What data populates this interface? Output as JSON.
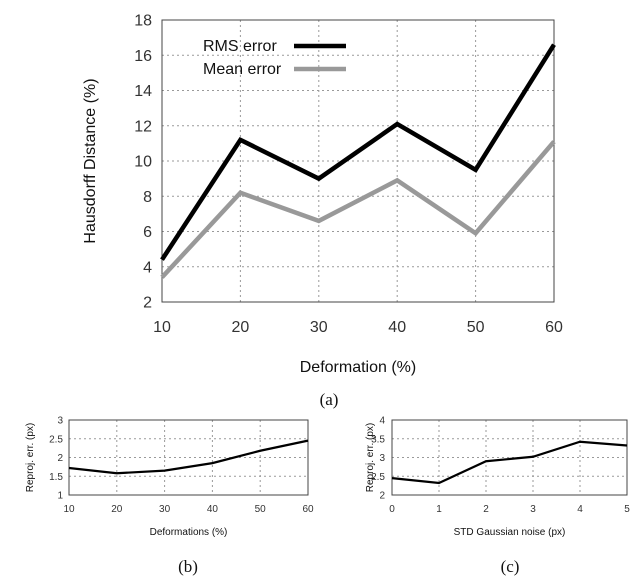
{
  "chart_data": [
    {
      "type": "line",
      "x": [
        10,
        20,
        30,
        40,
        50,
        60
      ],
      "series": [
        {
          "name": "RMS error",
          "values": [
            4.4,
            11.2,
            9.0,
            12.1,
            9.5,
            16.6
          ],
          "color": "#000000"
        },
        {
          "name": "Mean error",
          "values": [
            3.4,
            8.2,
            6.6,
            8.9,
            5.9,
            11.1
          ],
          "color": "#999999"
        }
      ],
      "xticks": [
        "10",
        "20",
        "30",
        "40",
        "50",
        "60"
      ],
      "yticks": [
        "2",
        "4",
        "6",
        "8",
        "10",
        "12",
        "14",
        "16",
        "18"
      ],
      "xlabel": "Deformation   (%)",
      "ylabel": "Hausdorff Distance (%)",
      "caption": "(a)",
      "xlim": [
        10,
        60
      ],
      "ylim": [
        2,
        18
      ],
      "grid": true,
      "legend": "top-left"
    },
    {
      "type": "line",
      "x": [
        10,
        20,
        30,
        40,
        50,
        60
      ],
      "series": [
        {
          "values": [
            1.72,
            1.58,
            1.65,
            1.85,
            2.18,
            2.45
          ],
          "color": "#000000"
        }
      ],
      "xticks": [
        "10",
        "20",
        "30",
        "40",
        "50",
        "60"
      ],
      "yticks": [
        "1",
        "1.5",
        "2",
        "2.5",
        "3"
      ],
      "xlabel": "Deformations (%)",
      "ylabel": "Reproj. err. (px)",
      "caption": "(b)",
      "xlim": [
        10,
        60
      ],
      "ylim": [
        1,
        3
      ],
      "grid": true
    },
    {
      "type": "line",
      "x": [
        0,
        1,
        2,
        3,
        4,
        5
      ],
      "series": [
        {
          "values": [
            2.45,
            2.32,
            2.9,
            3.02,
            3.42,
            3.32
          ],
          "color": "#000000"
        }
      ],
      "xticks": [
        "0",
        "1",
        "2",
        "3",
        "4",
        "5"
      ],
      "yticks": [
        "2",
        "2.5",
        "3",
        "3.5",
        "4"
      ],
      "xlabel": "STD Gaussian noise (px)",
      "ylabel": "Reproj. err. (px)",
      "caption": "(c)",
      "xlim": [
        0,
        5
      ],
      "ylim": [
        2,
        4
      ],
      "grid": true
    }
  ]
}
